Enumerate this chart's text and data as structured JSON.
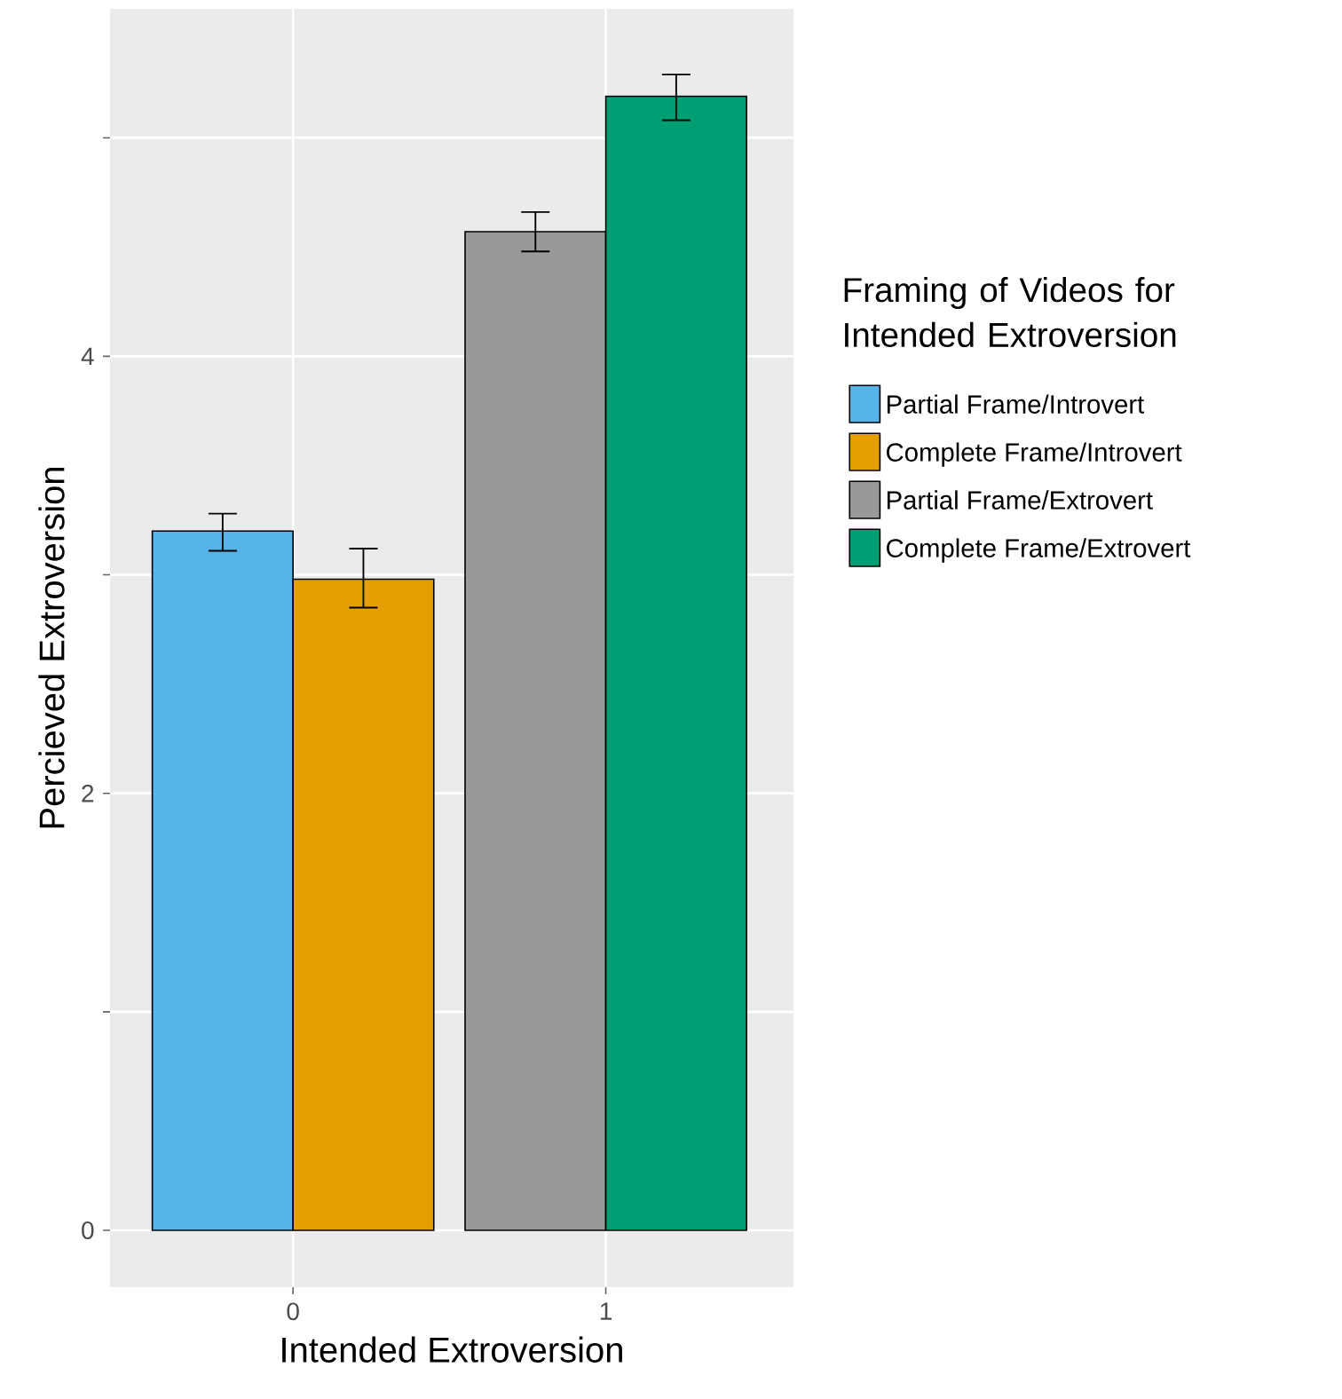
{
  "chart_data": {
    "type": "bar",
    "xlabel": "Intended Extroversion",
    "ylabel": "Percieved Extroversion",
    "legend_title": "Framing of Videos for Intended Extroversion",
    "categories": [
      "0",
      "1"
    ],
    "series": [
      {
        "name": "Partial Frame/Introvert",
        "color": "#56b4e9",
        "values": [
          3.2,
          null
        ],
        "errors": [
          [
            3.11,
            3.28
          ],
          null
        ]
      },
      {
        "name": "Complete Frame/Introvert",
        "color": "#e69f00",
        "values": [
          2.98,
          null
        ],
        "errors": [
          [
            2.85,
            3.12
          ],
          null
        ]
      },
      {
        "name": "Partial Frame/Extrovert",
        "color": "#999999",
        "values": [
          null,
          4.57
        ],
        "errors": [
          null,
          [
            4.48,
            4.66
          ]
        ]
      },
      {
        "name": "Complete Frame/Extrovert",
        "color": "#009e73",
        "values": [
          null,
          5.19
        ],
        "errors": [
          null,
          [
            5.08,
            5.29
          ]
        ]
      }
    ],
    "ylim": [
      -0.26,
      5.59
    ],
    "yticks": [
      0,
      {
        "value": 1,
        "label": null
      },
      2,
      {
        "value": 3,
        "label": null
      },
      4,
      {
        "value": 5,
        "label": null
      }
    ],
    "grid": true,
    "legend": "right"
  }
}
